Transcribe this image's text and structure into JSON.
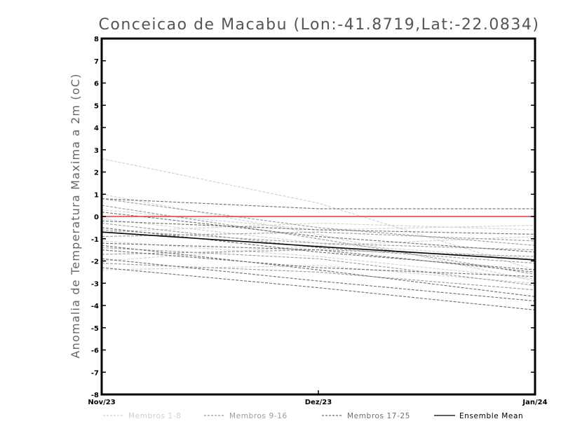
{
  "chart_data": {
    "type": "line",
    "title": "Conceicao de Macabu (Lon:-41.8719,Lat:-22.0834)",
    "ylabel": "Anomalia de Temperatura Maxima a 2m (oC)",
    "xlabel": "",
    "categories": [
      "Nov/23",
      "Dez/23",
      "Jan/24"
    ],
    "ylim": [
      -8,
      8
    ],
    "yticks": [
      "8",
      "7",
      "6",
      "5",
      "4",
      "3",
      "2",
      "1",
      "0",
      "-1",
      "-2",
      "-3",
      "-4",
      "-5",
      "-6",
      "-7",
      "-8"
    ],
    "grid": false,
    "zero_line_color": "#e03c3c",
    "groups": [
      {
        "name": "Membros 1-8",
        "color": "#d0d0d0",
        "dash": true
      },
      {
        "name": "Membros 9-16",
        "color": "#9a9a9a",
        "dash": true
      },
      {
        "name": "Membros 17-25",
        "color": "#6e6e6e",
        "dash": true
      },
      {
        "name": "Ensemble Mean",
        "color": "#000000",
        "dash": false
      }
    ],
    "series": [
      {
        "group": 0,
        "values": [
          2.6,
          0.6,
          -2.4
        ]
      },
      {
        "group": 0,
        "values": [
          1.0,
          -0.8,
          -2.9
        ]
      },
      {
        "group": 0,
        "values": [
          0.3,
          -0.6,
          -0.4
        ]
      },
      {
        "group": 0,
        "values": [
          -0.1,
          -1.2,
          -1.9
        ]
      },
      {
        "group": 0,
        "values": [
          -0.7,
          -0.3,
          -0.6
        ]
      },
      {
        "group": 0,
        "values": [
          -1.1,
          -1.8,
          -2.8
        ]
      },
      {
        "group": 0,
        "values": [
          -2.0,
          -1.3,
          -0.9
        ]
      },
      {
        "group": 0,
        "values": [
          -2.4,
          -2.2,
          -3.0
        ]
      },
      {
        "group": 1,
        "values": [
          0.8,
          -0.5,
          -1.3
        ]
      },
      {
        "group": 1,
        "values": [
          0.5,
          -1.0,
          -2.6
        ]
      },
      {
        "group": 1,
        "values": [
          -0.3,
          -1.4,
          -2.1
        ]
      },
      {
        "group": 1,
        "values": [
          -0.6,
          -1.2,
          -1.5
        ]
      },
      {
        "group": 1,
        "values": [
          -0.9,
          -0.7,
          -1.1
        ]
      },
      {
        "group": 1,
        "values": [
          -1.4,
          -1.9,
          -3.1
        ]
      },
      {
        "group": 1,
        "values": [
          -1.7,
          -1.5,
          -1.8
        ]
      },
      {
        "group": 1,
        "values": [
          -2.1,
          -2.5,
          -3.3
        ]
      },
      {
        "group": 2,
        "values": [
          0.8,
          0.35,
          0.35
        ]
      },
      {
        "group": 2,
        "values": [
          0.2,
          -0.9,
          -1.6
        ]
      },
      {
        "group": 2,
        "values": [
          -0.2,
          -0.6,
          -0.8
        ]
      },
      {
        "group": 2,
        "values": [
          -0.5,
          -1.6,
          -2.4
        ]
      },
      {
        "group": 2,
        "values": [
          -1.2,
          -1.5,
          -2.5
        ]
      },
      {
        "group": 2,
        "values": [
          -1.5,
          -2.3,
          -2.7
        ]
      },
      {
        "group": 2,
        "values": [
          -1.9,
          -2.9,
          -3.8
        ]
      },
      {
        "group": 2,
        "values": [
          -2.3,
          -3.2,
          -4.2
        ]
      },
      {
        "group": 2,
        "values": [
          -1.3,
          -2.4,
          -3.6
        ]
      },
      {
        "group": 3,
        "values": [
          -0.7,
          -1.35,
          -1.95
        ]
      }
    ]
  }
}
